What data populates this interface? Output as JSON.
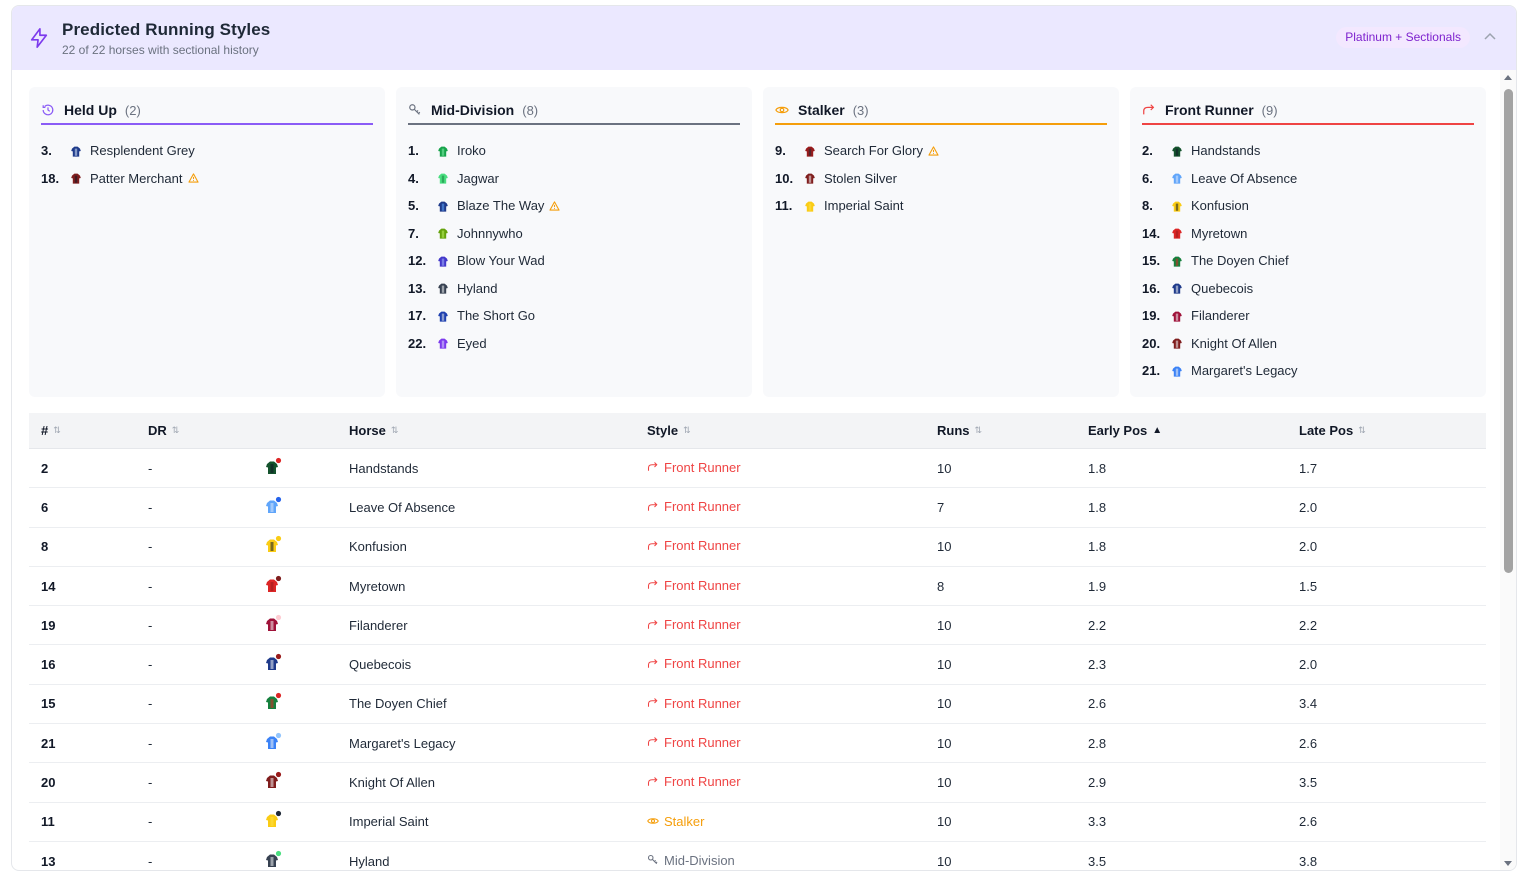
{
  "header": {
    "title": "Predicted Running Styles",
    "subtitle": "22 of 22 horses with sectional history",
    "badge": "Platinum + Sectionals"
  },
  "colors": {
    "held_up": "#8b5cf6",
    "mid_division": "#6b7280",
    "stalker": "#f59e0b",
    "front_runner": "#ef4444"
  },
  "groups": [
    {
      "name": "Held Up",
      "count": "(2)",
      "icon": "clock-icon",
      "color": "#8b5cf6",
      "horses": [
        {
          "num": "3.",
          "name": "Resplendent Grey",
          "warn": false,
          "silk": [
            "#1e3a8a",
            "#dbeafe"
          ]
        },
        {
          "num": "18.",
          "name": "Patter Merchant",
          "warn": true,
          "silk": [
            "#7f1d1d",
            "#111827"
          ]
        }
      ]
    },
    {
      "name": "Mid-Division",
      "count": "(8)",
      "icon": "key-icon",
      "color": "#6b7280",
      "horses": [
        {
          "num": "1.",
          "name": "Iroko",
          "warn": false,
          "silk": [
            "#16a34a",
            "#86efac"
          ]
        },
        {
          "num": "4.",
          "name": "Jagwar",
          "warn": false,
          "silk": [
            "#4ade80",
            "#15803d"
          ]
        },
        {
          "num": "5.",
          "name": "Blaze The Way",
          "warn": true,
          "silk": [
            "#1e3a8a",
            "#60a5fa"
          ]
        },
        {
          "num": "7.",
          "name": "Johnnywho",
          "warn": false,
          "silk": [
            "#65a30d",
            "#bef264"
          ]
        },
        {
          "num": "12.",
          "name": "Blow Your Wad",
          "warn": false,
          "silk": [
            "#4338ca",
            "#a5b4fc"
          ]
        },
        {
          "num": "13.",
          "name": "Hyland",
          "warn": false,
          "silk": [
            "#374151",
            "#f3f4f6"
          ]
        },
        {
          "num": "17.",
          "name": "The Short Go",
          "warn": false,
          "silk": [
            "#1e40af",
            "#e5e7eb"
          ]
        },
        {
          "num": "22.",
          "name": "Eyed",
          "warn": false,
          "silk": [
            "#7c3aed",
            "#ddd6fe"
          ]
        }
      ]
    },
    {
      "name": "Stalker",
      "count": "(3)",
      "icon": "eye-icon",
      "color": "#f59e0b",
      "horses": [
        {
          "num": "9.",
          "name": "Search For Glory",
          "warn": true,
          "silk": [
            "#991b1b",
            "#1f2937"
          ]
        },
        {
          "num": "10.",
          "name": "Stolen Silver",
          "warn": false,
          "silk": [
            "#7f1d1d",
            "#f3f4f6"
          ]
        },
        {
          "num": "11.",
          "name": "Imperial Saint",
          "warn": false,
          "silk": [
            "#facc15",
            "#fde047"
          ]
        }
      ]
    },
    {
      "name": "Front Runner",
      "count": "(9)",
      "icon": "trend-up-icon",
      "color": "#ef4444",
      "horses": [
        {
          "num": "2.",
          "name": "Handstands",
          "warn": false,
          "silk": [
            "#14532d",
            "#111827"
          ]
        },
        {
          "num": "6.",
          "name": "Leave Of Absence",
          "warn": false,
          "silk": [
            "#60a5fa",
            "#dbeafe"
          ]
        },
        {
          "num": "8.",
          "name": "Konfusion",
          "warn": false,
          "silk": [
            "#facc15",
            "#111827"
          ]
        },
        {
          "num": "14.",
          "name": "Myretown",
          "warn": false,
          "silk": [
            "#dc2626",
            "#991b1b"
          ]
        },
        {
          "num": "15.",
          "name": "The Doyen Chief",
          "warn": false,
          "silk": [
            "#15803d",
            "#dc2626"
          ]
        },
        {
          "num": "16.",
          "name": "Quebecois",
          "warn": false,
          "silk": [
            "#1e3a8a",
            "#f3f4f6"
          ]
        },
        {
          "num": "19.",
          "name": "Filanderer",
          "warn": false,
          "silk": [
            "#9f1239",
            "#f3f4f6"
          ]
        },
        {
          "num": "20.",
          "name": "Knight Of Allen",
          "warn": false,
          "silk": [
            "#7f1d1d",
            "#f3f4f6"
          ]
        },
        {
          "num": "21.",
          "name": "Margaret's Legacy",
          "warn": false,
          "silk": [
            "#3b82f6",
            "#f3f4f6"
          ]
        }
      ]
    }
  ],
  "table": {
    "columns": [
      {
        "label": "#",
        "sort": "⇅",
        "active": false
      },
      {
        "label": "DR",
        "sort": "⇅",
        "active": false
      },
      {
        "label": "",
        "sort": "",
        "active": false
      },
      {
        "label": "Horse",
        "sort": "⇅",
        "active": false
      },
      {
        "label": "Style",
        "sort": "⇅",
        "active": false
      },
      {
        "label": "Runs",
        "sort": "⇅",
        "active": false
      },
      {
        "label": "Early Pos",
        "sort": "▲",
        "active": true
      },
      {
        "label": "Late Pos",
        "sort": "⇅",
        "active": false
      }
    ],
    "rows": [
      {
        "num": "2",
        "dr": "-",
        "horse": "Handstands",
        "style": "Front Runner",
        "style_key": "fr",
        "runs": "10",
        "early": "1.8",
        "late": "1.7",
        "silk": [
          "#14532d",
          "#111827"
        ],
        "dot": "#dc2626"
      },
      {
        "num": "6",
        "dr": "-",
        "horse": "Leave Of Absence",
        "style": "Front Runner",
        "style_key": "fr",
        "runs": "7",
        "early": "1.8",
        "late": "2.0",
        "silk": [
          "#60a5fa",
          "#dbeafe"
        ],
        "dot": "#2563eb"
      },
      {
        "num": "8",
        "dr": "-",
        "horse": "Konfusion",
        "style": "Front Runner",
        "style_key": "fr",
        "runs": "10",
        "early": "1.8",
        "late": "2.0",
        "silk": [
          "#facc15",
          "#111827"
        ],
        "dot": "#facc15"
      },
      {
        "num": "14",
        "dr": "-",
        "horse": "Myretown",
        "style": "Front Runner",
        "style_key": "fr",
        "runs": "8",
        "early": "1.9",
        "late": "1.5",
        "silk": [
          "#dc2626",
          "#991b1b"
        ],
        "dot": "#7f1d1d"
      },
      {
        "num": "19",
        "dr": "-",
        "horse": "Filanderer",
        "style": "Front Runner",
        "style_key": "fr",
        "runs": "10",
        "early": "2.2",
        "late": "2.2",
        "silk": [
          "#9f1239",
          "#f3f4f6"
        ],
        "dot": "#fecdd3"
      },
      {
        "num": "16",
        "dr": "-",
        "horse": "Quebecois",
        "style": "Front Runner",
        "style_key": "fr",
        "runs": "10",
        "early": "2.3",
        "late": "2.0",
        "silk": [
          "#1e3a8a",
          "#f3f4f6"
        ],
        "dot": "#991b1b"
      },
      {
        "num": "15",
        "dr": "-",
        "horse": "The Doyen Chief",
        "style": "Front Runner",
        "style_key": "fr",
        "runs": "10",
        "early": "2.6",
        "late": "3.4",
        "silk": [
          "#15803d",
          "#dc2626"
        ],
        "dot": "#dc2626"
      },
      {
        "num": "21",
        "dr": "-",
        "horse": "Margaret's Legacy",
        "style": "Front Runner",
        "style_key": "fr",
        "runs": "10",
        "early": "2.8",
        "late": "2.6",
        "silk": [
          "#3b82f6",
          "#f3f4f6"
        ],
        "dot": "#93c5fd"
      },
      {
        "num": "20",
        "dr": "-",
        "horse": "Knight Of Allen",
        "style": "Front Runner",
        "style_key": "fr",
        "runs": "10",
        "early": "2.9",
        "late": "3.5",
        "silk": [
          "#7f1d1d",
          "#f3f4f6"
        ],
        "dot": "#991b1b"
      },
      {
        "num": "11",
        "dr": "-",
        "horse": "Imperial Saint",
        "style": "Stalker",
        "style_key": "st",
        "runs": "10",
        "early": "3.3",
        "late": "2.6",
        "silk": [
          "#facc15",
          "#fde047"
        ],
        "dot": "#1f2937"
      },
      {
        "num": "13",
        "dr": "-",
        "horse": "Hyland",
        "style": "Mid-Division",
        "style_key": "md",
        "runs": "10",
        "early": "3.5",
        "late": "3.8",
        "silk": [
          "#374151",
          "#f3f4f6"
        ],
        "dot": "#4ade80"
      }
    ]
  }
}
